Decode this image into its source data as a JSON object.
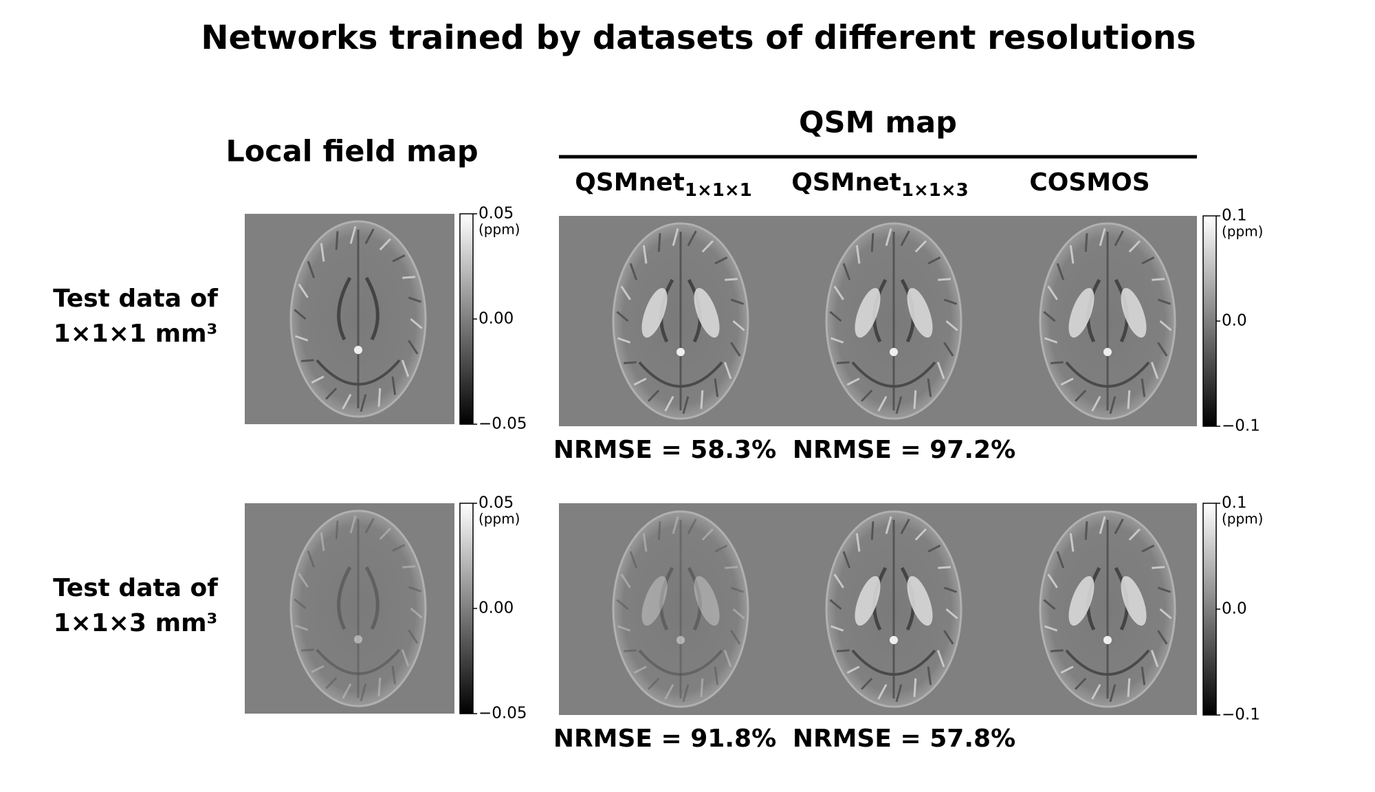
{
  "title": "Networks trained by datasets of different resolutions",
  "local_header": "Local field map",
  "qsm_header": "QSM map",
  "columns": [
    {
      "name": "QSMnet",
      "subscript": "1×1×1"
    },
    {
      "name": "QSMnet",
      "subscript": "1×1×3"
    },
    {
      "name": "COSMOS"
    }
  ],
  "rows": [
    {
      "label": [
        "Test data of",
        "1×1×1 mm³"
      ],
      "nrmse": [
        "NRMSE = 58.3%",
        "NRMSE = 97.2%"
      ]
    },
    {
      "label": [
        "Test data of",
        "1×1×3 mm³"
      ],
      "nrmse": [
        "NRMSE = 91.8%",
        "NRMSE = 57.8%"
      ]
    }
  ],
  "local_colorbar": {
    "top": "0.05",
    "unit": "(ppm)",
    "middle": "0.00",
    "bottom": "−0.05"
  },
  "qsm_colorbar": {
    "top": "0.1",
    "unit": "(ppm)",
    "middle": "0.0",
    "bottom": "−0.1"
  }
}
